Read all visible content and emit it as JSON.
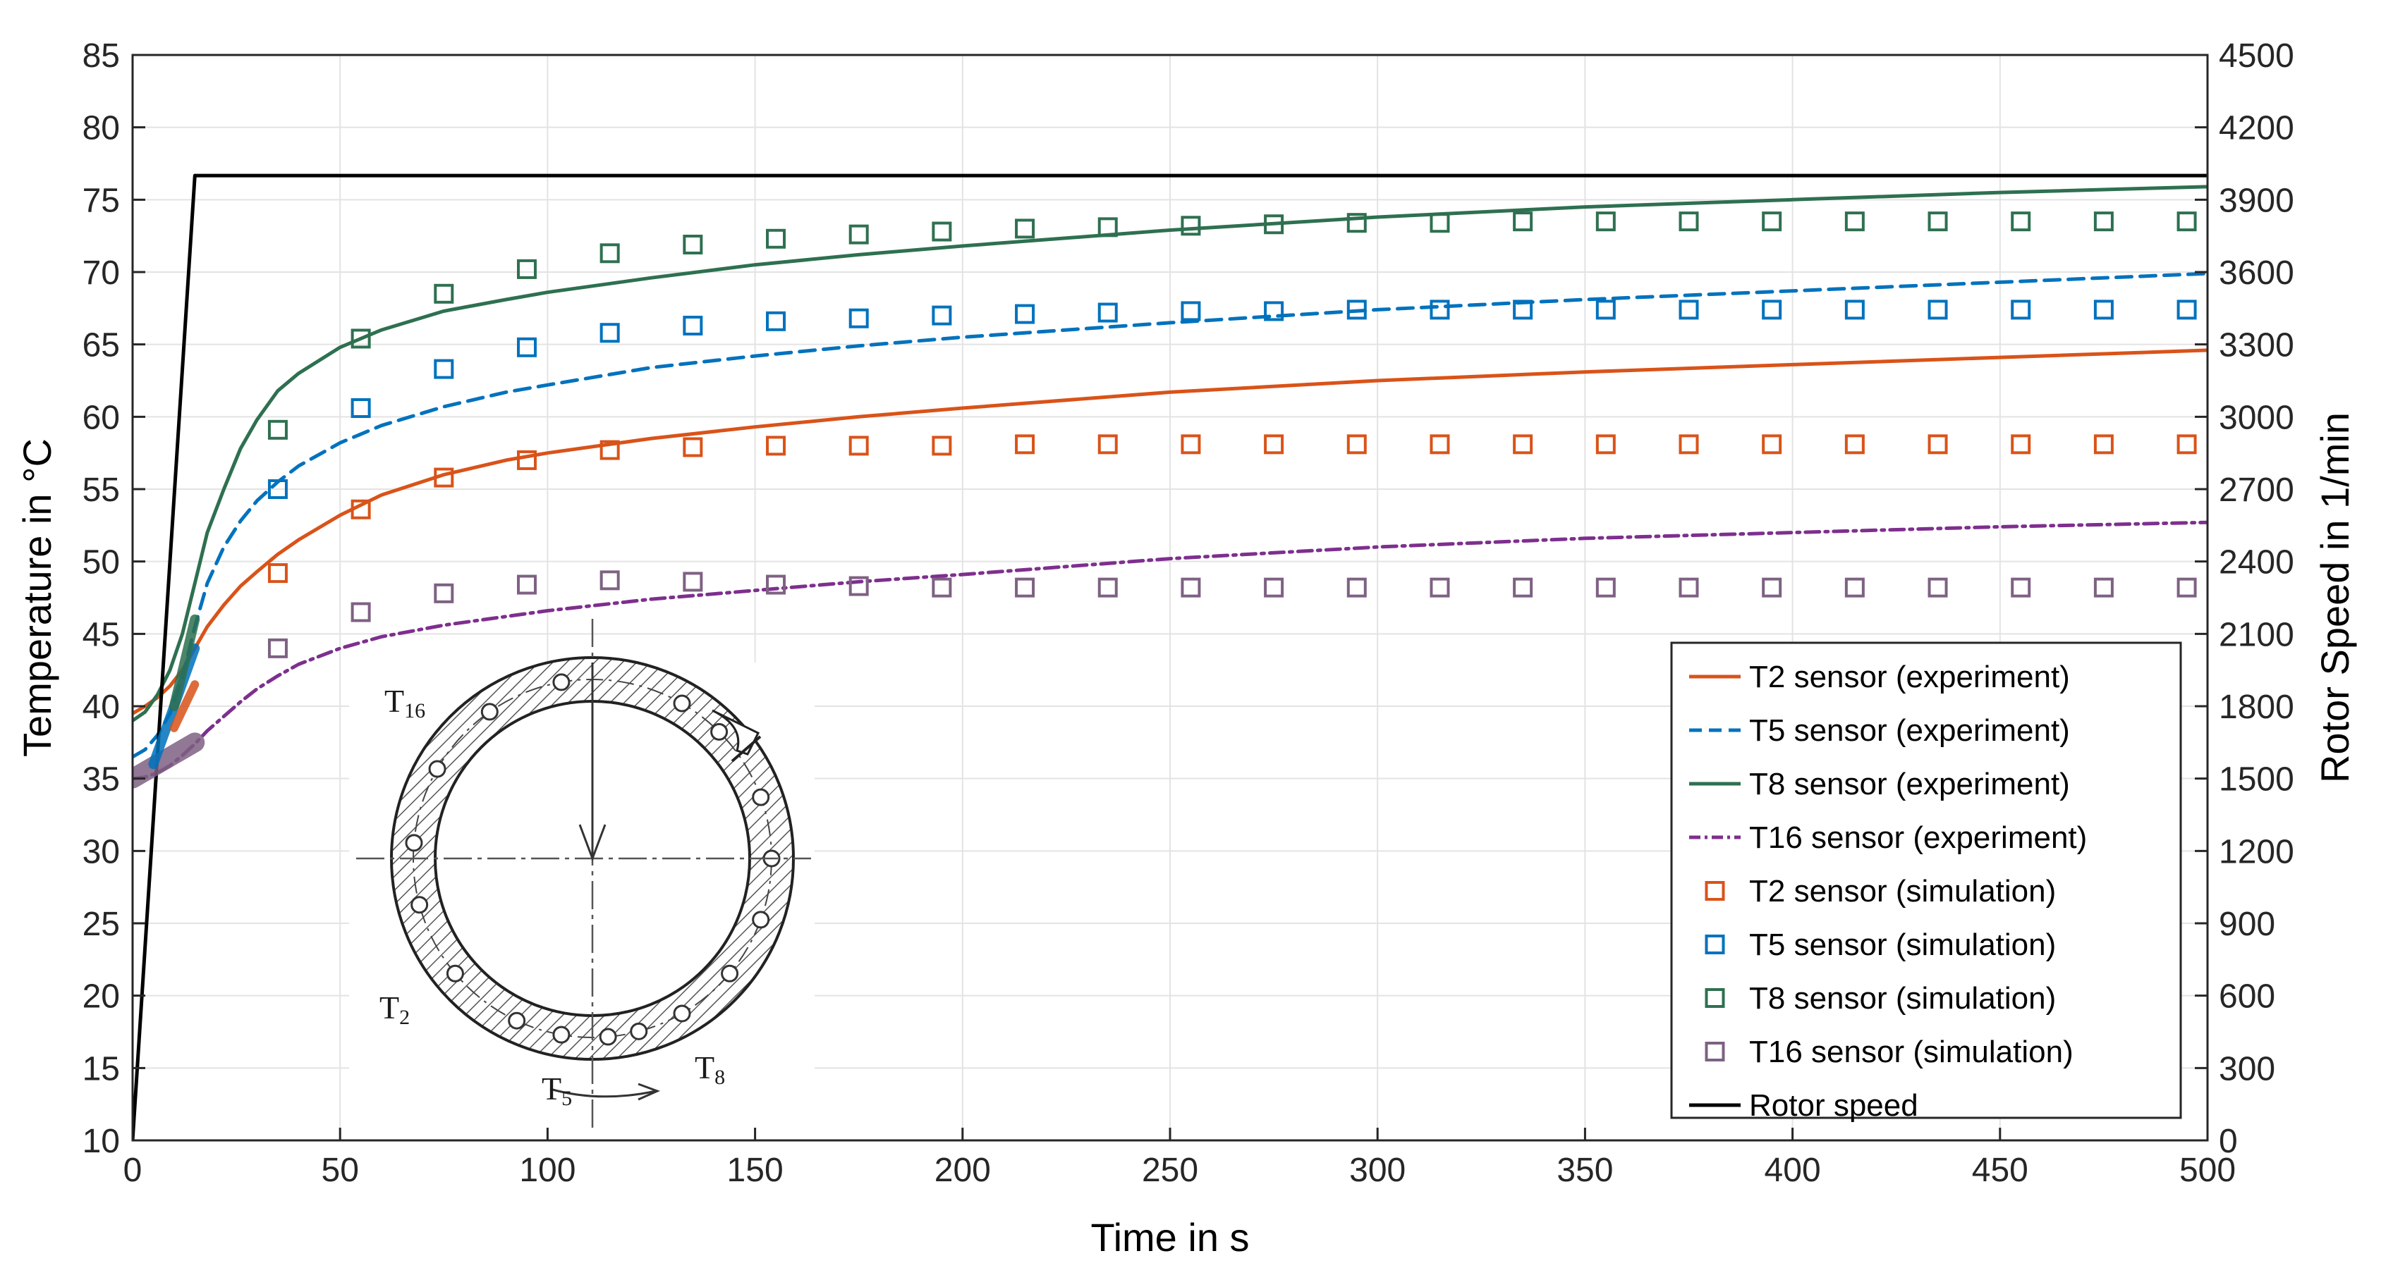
{
  "chart_data": {
    "type": "line",
    "title": "",
    "xlabel": "Time in s",
    "ylabel": "Temperature in °C",
    "y2label": "Rotor Speed in 1/min",
    "xlim": [
      0,
      500
    ],
    "ylim": [
      10,
      85
    ],
    "y2lim": [
      0,
      4500
    ],
    "grid": true,
    "legend_position": "bottom-right",
    "x_ticks": [
      "0",
      "50",
      "100",
      "150",
      "200",
      "250",
      "300",
      "350",
      "400",
      "450",
      "500"
    ],
    "y_ticks": [
      "10",
      "15",
      "20",
      "25",
      "30",
      "35",
      "40",
      "45",
      "50",
      "55",
      "60",
      "65",
      "70",
      "75",
      "80",
      "85"
    ],
    "y2_ticks": [
      "0",
      "300",
      "600",
      "900",
      "1200",
      "1500",
      "1800",
      "2100",
      "2400",
      "2700",
      "3000",
      "3300",
      "3600",
      "3900",
      "4200",
      "4500"
    ],
    "series": [
      {
        "name": "T2 sensor (experiment)",
        "kind": "line",
        "style": "solid",
        "color": "#D95319",
        "axis": "left",
        "x": [
          0,
          3,
          6,
          9,
          12,
          15,
          18,
          22,
          26,
          30,
          35,
          40,
          50,
          60,
          75,
          90,
          100,
          125,
          150,
          175,
          200,
          250,
          300,
          350,
          400,
          450,
          500
        ],
        "y": [
          39.5,
          40.0,
          40.6,
          41.4,
          42.5,
          44.0,
          45.5,
          47.0,
          48.3,
          49.3,
          50.5,
          51.5,
          53.2,
          54.6,
          56.0,
          57.0,
          57.5,
          58.5,
          59.3,
          60.0,
          60.6,
          61.7,
          62.5,
          63.1,
          63.6,
          64.1,
          64.6
        ]
      },
      {
        "name": "T5 sensor (experiment)",
        "kind": "line",
        "style": "dashed",
        "color": "#0072BD",
        "axis": "left",
        "x": [
          0,
          3,
          6,
          9,
          12,
          15,
          18,
          22,
          26,
          30,
          35,
          40,
          50,
          60,
          75,
          90,
          100,
          125,
          150,
          175,
          200,
          250,
          300,
          350,
          400,
          450,
          500
        ],
        "y": [
          36.5,
          37.0,
          38.0,
          39.5,
          42.0,
          45.5,
          48.5,
          51.0,
          52.8,
          54.2,
          55.5,
          56.6,
          58.2,
          59.4,
          60.7,
          61.7,
          62.2,
          63.4,
          64.2,
          64.9,
          65.5,
          66.5,
          67.4,
          68.1,
          68.7,
          69.3,
          69.9
        ]
      },
      {
        "name": "T8 sensor (experiment)",
        "kind": "line",
        "style": "solid",
        "color": "#2E7050",
        "axis": "left",
        "x": [
          0,
          3,
          6,
          9,
          12,
          15,
          18,
          22,
          26,
          30,
          35,
          40,
          50,
          60,
          75,
          90,
          100,
          125,
          150,
          175,
          200,
          250,
          300,
          350,
          400,
          450,
          500
        ],
        "y": [
          39.0,
          39.6,
          40.8,
          42.5,
          45.0,
          48.5,
          52.0,
          55.0,
          57.8,
          59.8,
          61.8,
          63.0,
          64.8,
          66.0,
          67.3,
          68.1,
          68.6,
          69.6,
          70.5,
          71.2,
          71.8,
          72.9,
          73.8,
          74.5,
          75.0,
          75.5,
          75.9
        ]
      },
      {
        "name": "T16 sensor (experiment)",
        "kind": "line",
        "style": "dashdot",
        "color": "#7E2F8E",
        "axis": "left",
        "x": [
          0,
          3,
          6,
          9,
          12,
          15,
          18,
          22,
          26,
          30,
          35,
          40,
          50,
          60,
          75,
          90,
          100,
          125,
          150,
          175,
          200,
          250,
          300,
          350,
          400,
          450,
          500
        ],
        "y": [
          35.0,
          35.1,
          35.4,
          35.9,
          36.6,
          37.4,
          38.3,
          39.3,
          40.3,
          41.2,
          42.1,
          42.9,
          44.0,
          44.8,
          45.6,
          46.2,
          46.6,
          47.4,
          48.0,
          48.6,
          49.1,
          50.2,
          51.0,
          51.6,
          52.0,
          52.4,
          52.7
        ]
      },
      {
        "name": "T2 sensor (simulation)",
        "kind": "markers",
        "marker": "square",
        "color": "#D95319",
        "axis": "left",
        "x": [
          35,
          55,
          75,
          95,
          115,
          135,
          155,
          175,
          195,
          215,
          235,
          255,
          275,
          295,
          315,
          335,
          355,
          375,
          395,
          415,
          435,
          455,
          475,
          495
        ],
        "y": [
          49.2,
          53.6,
          55.8,
          57.0,
          57.7,
          57.9,
          58.0,
          58.0,
          58.0,
          58.1,
          58.1,
          58.1,
          58.1,
          58.1,
          58.1,
          58.1,
          58.1,
          58.1,
          58.1,
          58.1,
          58.1,
          58.1,
          58.1,
          58.1
        ]
      },
      {
        "name": "T5 sensor (simulation)",
        "kind": "markers",
        "marker": "square",
        "color": "#0072BD",
        "axis": "left",
        "x": [
          35,
          55,
          75,
          95,
          115,
          135,
          155,
          175,
          195,
          215,
          235,
          255,
          275,
          295,
          315,
          335,
          355,
          375,
          395,
          415,
          435,
          455,
          475,
          495
        ],
        "y": [
          55.0,
          60.6,
          63.3,
          64.8,
          65.8,
          66.3,
          66.6,
          66.8,
          67.0,
          67.1,
          67.2,
          67.3,
          67.3,
          67.4,
          67.4,
          67.4,
          67.4,
          67.4,
          67.4,
          67.4,
          67.4,
          67.4,
          67.4,
          67.4
        ]
      },
      {
        "name": "T8 sensor (simulation)",
        "kind": "markers",
        "marker": "square",
        "color": "#2E7050",
        "axis": "left",
        "x": [
          35,
          55,
          75,
          95,
          115,
          135,
          155,
          175,
          195,
          215,
          235,
          255,
          275,
          295,
          315,
          335,
          355,
          375,
          395,
          415,
          435,
          455,
          475,
          495
        ],
        "y": [
          59.1,
          65.4,
          68.5,
          70.2,
          71.3,
          71.9,
          72.3,
          72.6,
          72.8,
          73.0,
          73.1,
          73.2,
          73.3,
          73.4,
          73.4,
          73.5,
          73.5,
          73.5,
          73.5,
          73.5,
          73.5,
          73.5,
          73.5,
          73.5
        ]
      },
      {
        "name": "T16 sensor (simulation)",
        "kind": "markers",
        "marker": "square",
        "color": "#7E6183",
        "axis": "left",
        "x": [
          35,
          55,
          75,
          95,
          115,
          135,
          155,
          175,
          195,
          215,
          235,
          255,
          275,
          295,
          315,
          335,
          355,
          375,
          395,
          415,
          435,
          455,
          475,
          495
        ],
        "y": [
          44.0,
          46.5,
          47.8,
          48.4,
          48.7,
          48.6,
          48.4,
          48.3,
          48.2,
          48.2,
          48.2,
          48.2,
          48.2,
          48.2,
          48.2,
          48.2,
          48.2,
          48.2,
          48.2,
          48.2,
          48.2,
          48.2,
          48.2,
          48.2
        ]
      },
      {
        "name": "Rotor speed",
        "kind": "line",
        "style": "solid",
        "color": "#000000",
        "axis": "right",
        "x": [
          0,
          15,
          500
        ],
        "y": [
          0,
          4000,
          4000
        ]
      }
    ],
    "inset": {
      "description_labels": [
        "T16",
        "T2",
        "T5",
        "T8"
      ],
      "labels": [
        {
          "main": "T",
          "sub": "16"
        },
        {
          "main": "T",
          "sub": "2"
        },
        {
          "main": "T",
          "sub": "5"
        },
        {
          "main": "T",
          "sub": "8"
        }
      ]
    }
  }
}
